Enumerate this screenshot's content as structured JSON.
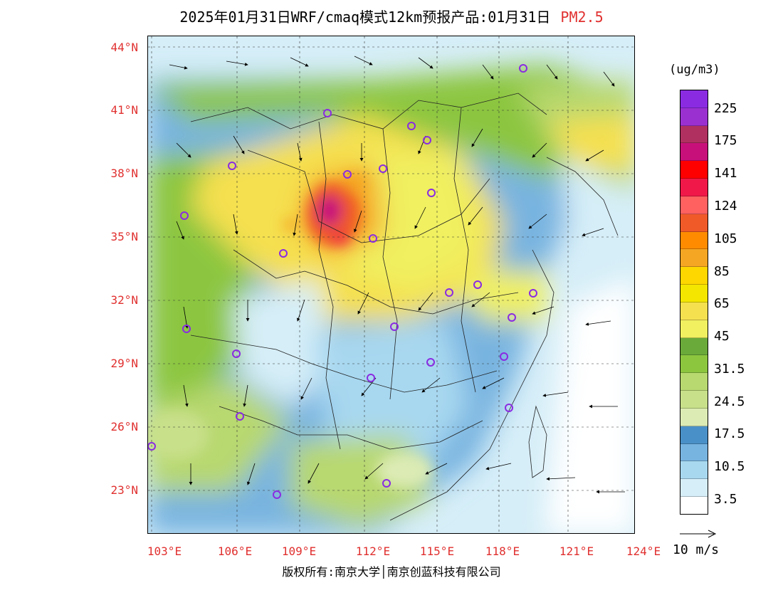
{
  "title": {
    "main": "2025年01月31日WRF/cmaq模式12km预报产品:01月31日",
    "species": "PM2.5"
  },
  "axes": {
    "lat_labels": [
      "44°N",
      "41°N",
      "38°N",
      "35°N",
      "32°N",
      "29°N",
      "26°N",
      "23°N"
    ],
    "lon_labels": [
      "103°E",
      "106°E",
      "109°E",
      "112°E",
      "115°E",
      "118°E",
      "121°E",
      "124°E"
    ]
  },
  "legend": {
    "unit": "(ug/m3)",
    "levels": [
      "225",
      "175",
      "141",
      "124",
      "105",
      "85",
      "65",
      "45",
      "31.5",
      "24.5",
      "17.5",
      "10.5",
      "3.5"
    ],
    "colors": [
      "#8a2be2",
      "#9b30d0",
      "#b03060",
      "#c8107a",
      "#ff0000",
      "#f01848",
      "#ff6060",
      "#f05a28",
      "#ff8c00",
      "#f5a623",
      "#ffd700",
      "#f5e600",
      "#f5e050",
      "#f0f060",
      "#6aaa3a",
      "#8cc63f",
      "#b8d870",
      "#c8e08a",
      "#dcebb4",
      "#4a90c8",
      "#78b4e0",
      "#a8d8f0",
      "#d6eef8",
      "#ffffff"
    ],
    "vector_label": "10 m/s"
  },
  "footer": {
    "copyright": "版权所有:南京大学│南京创蓝科技有限公司"
  },
  "stations": 26
}
